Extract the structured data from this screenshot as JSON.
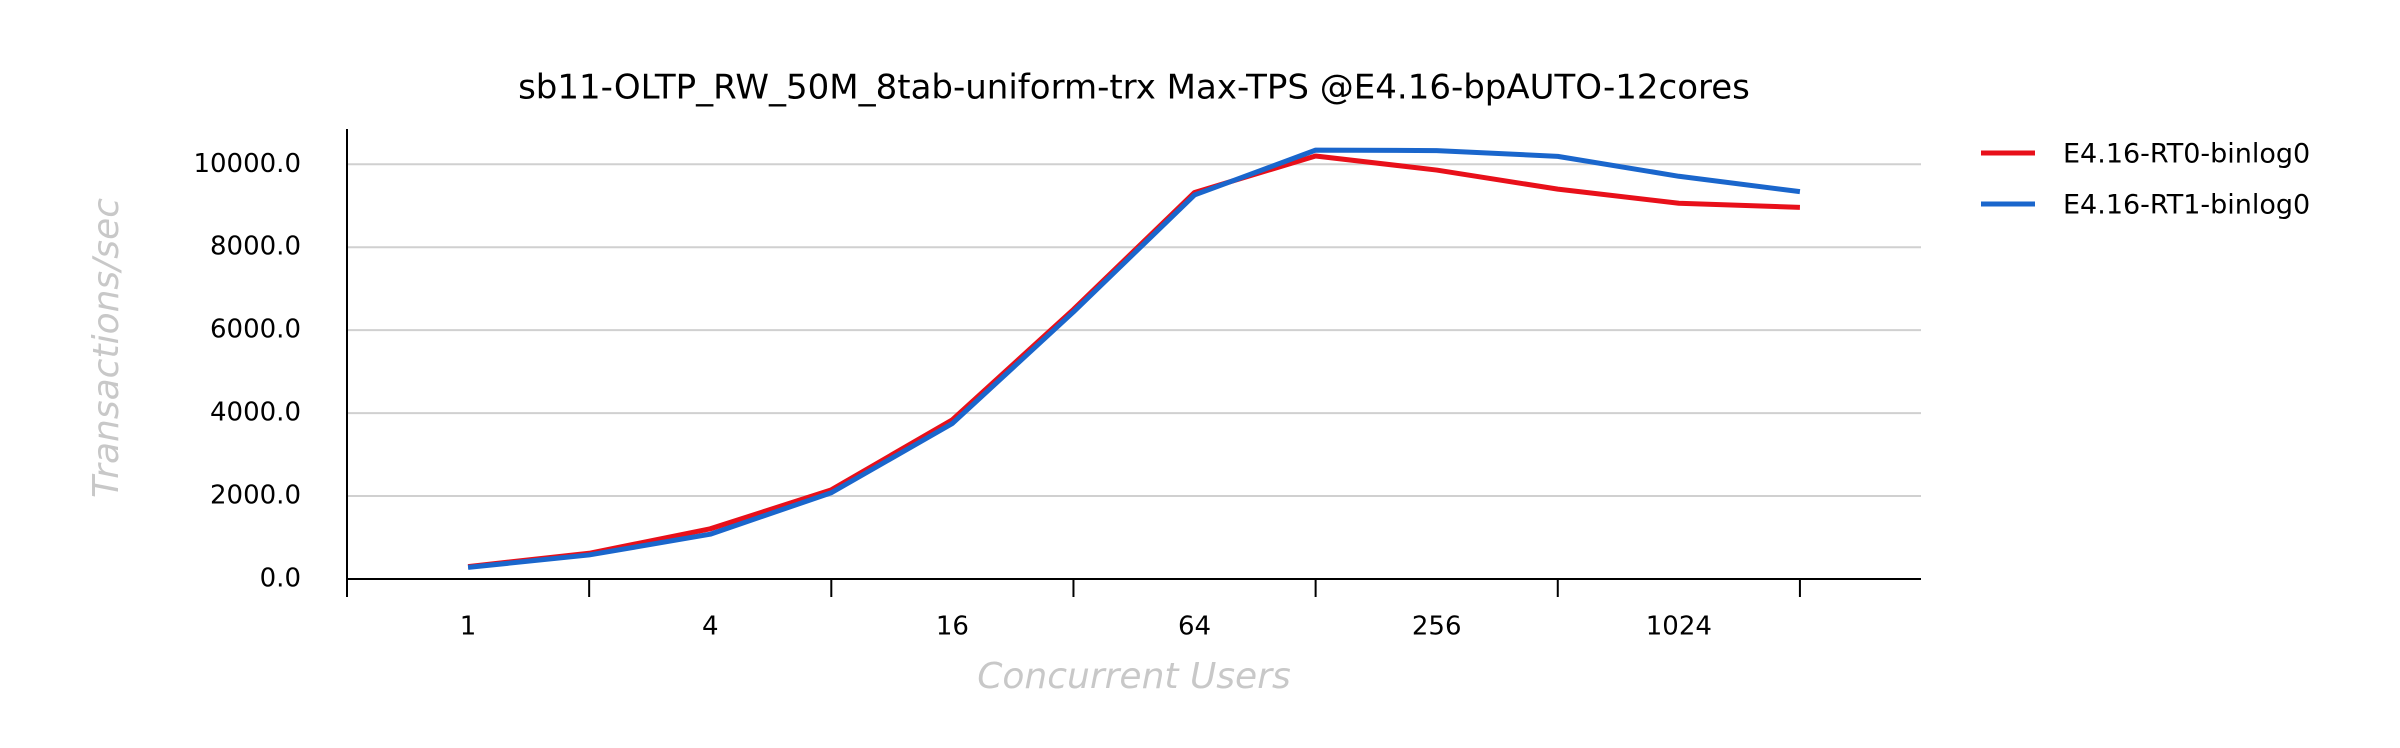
{
  "chart_data": {
    "type": "line",
    "title": "sb11-OLTP_RW_50M_8tab-uniform-trx Max-TPS @E4.16-bpAUTO-12cores",
    "x_label": "Concurrent Users",
    "y_label": "Transactions/sec",
    "categories": [
      "1",
      null,
      "4",
      null,
      "16",
      null,
      "64",
      null,
      "256",
      null,
      "1024",
      null
    ],
    "series": [
      {
        "name": "E4.16-RT0-binlog0",
        "color": "#e8101a",
        "values": [
          300,
          620,
          1210,
          2150,
          3840,
          6500,
          9320,
          10200,
          9860,
          9400,
          9060,
          8960
        ]
      },
      {
        "name": "E4.16-RT1-binlog0",
        "color": "#1a66cc",
        "values": [
          280,
          580,
          1080,
          2080,
          3750,
          6440,
          9260,
          10340,
          10330,
          10190,
          9710,
          9340
        ]
      }
    ],
    "ylim": [
      0,
      10850
    ],
    "yticks": [
      {
        "value": 0,
        "label": "0.0"
      },
      {
        "value": 2000,
        "label": "2000.0"
      },
      {
        "value": 4000,
        "label": "4000.0"
      },
      {
        "value": 6000,
        "label": "6000.0"
      },
      {
        "value": 8000,
        "label": "8000.0"
      },
      {
        "value": 10000,
        "label": "10000.0"
      }
    ],
    "grid": true,
    "legend": "right"
  }
}
